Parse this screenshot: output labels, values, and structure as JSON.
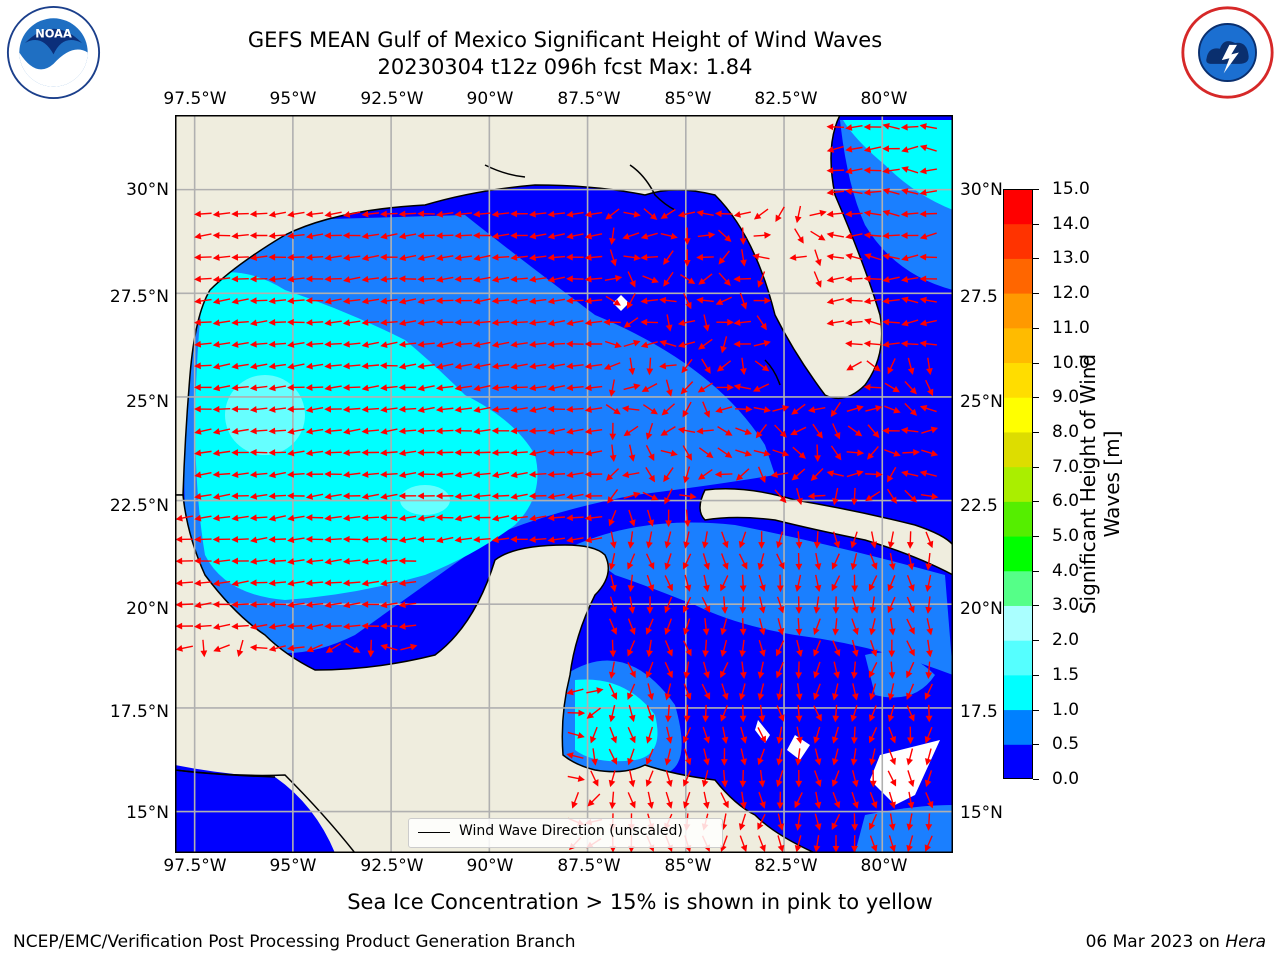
{
  "title": {
    "line1": "GEFS MEAN Gulf of Mexico Significant Height of Wind Waves",
    "line2": "20230304 t12z 096h fcst   Max: 1.84"
  },
  "map": {
    "lon_labels": [
      "97.5°W",
      "95°W",
      "92.5°W",
      "90°W",
      "87.5°W",
      "85°W",
      "82.5°W",
      "80°W"
    ],
    "lat_labels": [
      "30°N",
      "27.5°N",
      "25°N",
      "22.5°N",
      "20°N",
      "17.5°N",
      "15°N"
    ],
    "lat_labels_right": [
      "30°N",
      "27.5",
      "25°N",
      "22.5",
      "20°N",
      "17.5",
      "15°N"
    ],
    "lon_range": [
      -98,
      -78.2
    ],
    "lat_range": [
      14.0,
      31.8
    ],
    "colors": {
      "land": "#efedde",
      "ocean_0_05": "#0000ff",
      "ocean_05_10": "#1a7fff",
      "ocean_10_15": "#00ffff",
      "ocean_15_20": "#66ffff",
      "grid": "#b0b0b0",
      "arrow": "#ff0000",
      "coast": "#000000"
    },
    "legend_label": "Wind Wave Direction (unscaled)"
  },
  "colorbar": {
    "title": "Significant Height of Wind Waves [m]",
    "tick_labels": [
      "0.0",
      "0.5",
      "1.0",
      "1.5",
      "2.0",
      "3.0",
      "4.0",
      "5.0",
      "6.0",
      "7.0",
      "8.0",
      "9.0",
      "10.0",
      "11.0",
      "12.0",
      "13.0",
      "14.0",
      "15.0"
    ],
    "levels": [
      0,
      0.5,
      1.0,
      1.5,
      2.0,
      3.0,
      4.0,
      5.0,
      6.0,
      7.0,
      8.0,
      9.0,
      10.0,
      11.0,
      12.0,
      13.0,
      14.0,
      15.0
    ],
    "colors": [
      "#0000ff",
      "#0080ff",
      "#00ffff",
      "#55ffff",
      "#aaffff",
      "#55ff88",
      "#00ff00",
      "#55ee00",
      "#aaee00",
      "#dddd00",
      "#ffff00",
      "#ffdd00",
      "#ffbb00",
      "#ff9900",
      "#ff6600",
      "#ff3300",
      "#ff0000"
    ]
  },
  "caption": "Sea Ice Concentration > 15% is shown in pink to yellow",
  "footer": {
    "left": "NCEP/EMC/Verification Post Processing Product Generation Branch",
    "right_date": "06 Mar 2023 on ",
    "right_machine": "Hera"
  },
  "logos": {
    "left_icon": "noaa-logo-icon",
    "right_icon": "nws-logo-icon"
  }
}
